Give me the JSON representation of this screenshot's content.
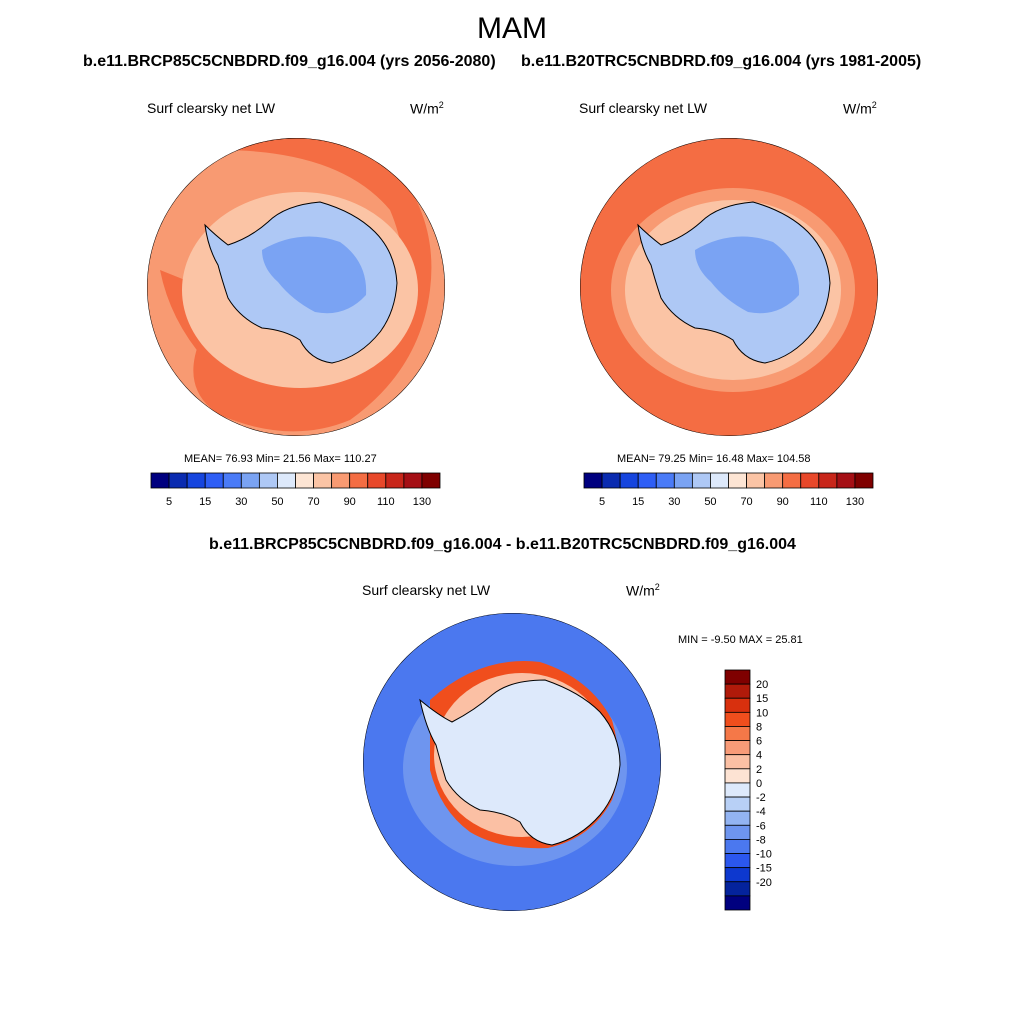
{
  "figure": {
    "season": "MAM",
    "left_case": "b.e11.BRCP85C5CNBDRD.f09_g16.004 (yrs 2056-2080)",
    "right_case": "b.e11.B20TRC5CNBDRD.f09_g16.004 (yrs 1981-2005)",
    "diff_title": "b.e11.BRCP85C5CNBDRD.f09_g16.004 - b.e11.B20TRC5CNBDRD.f09_g16.004"
  },
  "chart_data": [
    {
      "type": "heatmap",
      "projection": "south-polar-stereographic",
      "variable": "Surf clearsky net LW",
      "units": "W/m",
      "units_exp": "2",
      "stats_text": "MEAN=  76.93  Min=  21.56  Max= 110.27",
      "stats": {
        "mean": 76.93,
        "min": 21.56,
        "max": 110.27
      },
      "colorbar": {
        "orientation": "horizontal",
        "levels": [
          5,
          10,
          15,
          20,
          30,
          40,
          50,
          60,
          70,
          80,
          90,
          100,
          110,
          120,
          130
        ],
        "tick_labels": [
          "5",
          "15",
          "30",
          "50",
          "70",
          "90",
          "110",
          "130"
        ],
        "colors": [
          "#00007f",
          "#0a2bb0",
          "#1645de",
          "#2e5ef5",
          "#4a7bf7",
          "#7aa3f3",
          "#aec8f5",
          "#dde9fb",
          "#fde5d4",
          "#fbc4a5",
          "#f89a72",
          "#f46d43",
          "#e8482a",
          "#c8261a",
          "#a50f15",
          "#7f0000"
        ]
      }
    },
    {
      "type": "heatmap",
      "projection": "south-polar-stereographic",
      "variable": "Surf clearsky net LW",
      "units": "W/m",
      "units_exp": "2",
      "stats_text": "MEAN=  79.25  Min=  16.48  Max= 104.58",
      "stats": {
        "mean": 79.25,
        "min": 16.48,
        "max": 104.58
      },
      "colorbar": {
        "orientation": "horizontal",
        "levels": [
          5,
          10,
          15,
          20,
          30,
          40,
          50,
          60,
          70,
          80,
          90,
          100,
          110,
          120,
          130
        ],
        "tick_labels": [
          "5",
          "15",
          "30",
          "50",
          "70",
          "90",
          "110",
          "130"
        ],
        "colors": [
          "#00007f",
          "#0a2bb0",
          "#1645de",
          "#2e5ef5",
          "#4a7bf7",
          "#7aa3f3",
          "#aec8f5",
          "#dde9fb",
          "#fde5d4",
          "#fbc4a5",
          "#f89a72",
          "#f46d43",
          "#e8482a",
          "#c8261a",
          "#a50f15",
          "#7f0000"
        ]
      }
    },
    {
      "type": "heatmap",
      "projection": "south-polar-stereographic",
      "variable": "Surf clearsky net LW",
      "units": "W/m",
      "units_exp": "2",
      "stats_text": "MIN =  -9.50 MAX =  25.81",
      "stats": {
        "min": -9.5,
        "max": 25.81
      },
      "colorbar": {
        "orientation": "vertical",
        "levels": [
          20,
          15,
          10,
          8,
          6,
          4,
          2,
          0,
          -2,
          -4,
          -6,
          -8,
          -10,
          -15,
          -20
        ],
        "tick_labels": [
          "20",
          "15",
          "10",
          "8",
          "6",
          "4",
          "2",
          "0",
          "-2",
          "-4",
          "-6",
          "-8",
          "-10",
          "-15",
          "-20"
        ],
        "colors": [
          "#7f0000",
          "#b01a0a",
          "#d8300e",
          "#f04e1d",
          "#f57848",
          "#f89b78",
          "#fbc0a4",
          "#fde3d3",
          "#dde9fb",
          "#b8d0f6",
          "#93b4f2",
          "#6e95ef",
          "#4b78ef",
          "#2b57ee",
          "#0d38cf",
          "#04239c",
          "#00007f"
        ]
      }
    }
  ]
}
